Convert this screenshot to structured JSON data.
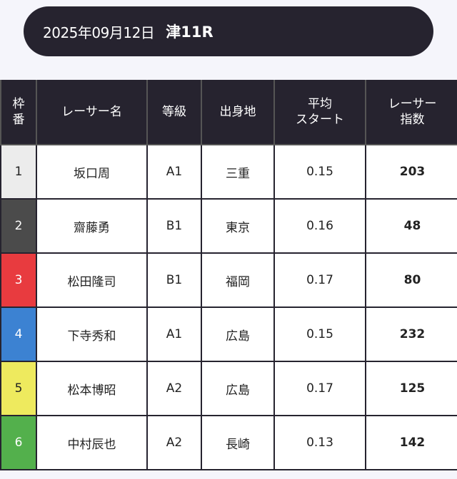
{
  "header": {
    "date": "2025年09月12日",
    "race": "津11R"
  },
  "table": {
    "columns": [
      [
        "枠",
        "番"
      ],
      [
        "レーサー名"
      ],
      [
        "等級"
      ],
      [
        "出身地"
      ],
      [
        "平均",
        "スタート"
      ],
      [
        "レーサー",
        "指数"
      ]
    ],
    "rows": [
      {
        "frame": "1",
        "name": "坂口周",
        "class": "A1",
        "origin": "三重",
        "avg_start": "0.15",
        "index": "203",
        "color": "#ececec",
        "text": "#222"
      },
      {
        "frame": "2",
        "name": "齋藤勇",
        "class": "B1",
        "origin": "東京",
        "avg_start": "0.16",
        "index": "48",
        "color": "#4b4b4b",
        "text": "#fff"
      },
      {
        "frame": "3",
        "name": "松田隆司",
        "class": "B1",
        "origin": "福岡",
        "avg_start": "0.17",
        "index": "80",
        "color": "#e83b3f",
        "text": "#fff"
      },
      {
        "frame": "4",
        "name": "下寺秀和",
        "class": "A1",
        "origin": "広島",
        "avg_start": "0.15",
        "index": "232",
        "color": "#3c82d2",
        "text": "#fff"
      },
      {
        "frame": "5",
        "name": "松本博昭",
        "class": "A2",
        "origin": "広島",
        "avg_start": "0.17",
        "index": "125",
        "color": "#eeea5e",
        "text": "#222"
      },
      {
        "frame": "6",
        "name": "中村辰也",
        "class": "A2",
        "origin": "長崎",
        "avg_start": "0.13",
        "index": "142",
        "color": "#53b04c",
        "text": "#fff"
      }
    ]
  }
}
